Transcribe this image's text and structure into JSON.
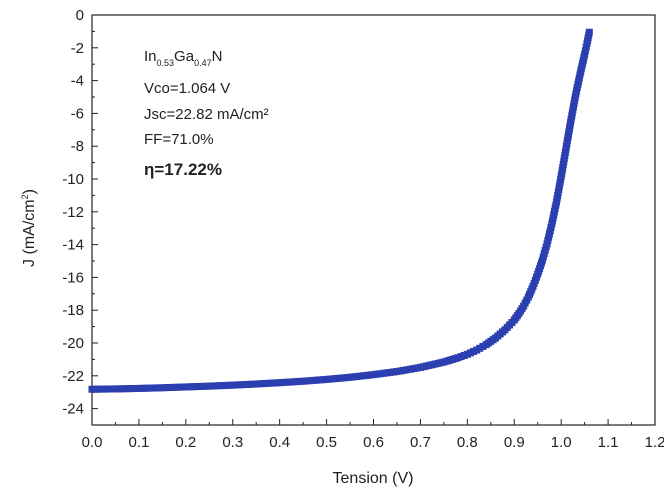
{
  "chart_data": {
    "type": "scatter",
    "title": "",
    "xlabel": "Tension (V)",
    "ylabel_main": "J (mA/cm",
    "ylabel_sup": "2",
    "ylabel_close": ")",
    "xlim": [
      0.0,
      1.2
    ],
    "ylim": [
      -25,
      0
    ],
    "x_ticks": [
      "0.0",
      "0.1",
      "0.2",
      "0.3",
      "0.4",
      "0.5",
      "0.6",
      "0.7",
      "0.8",
      "0.9",
      "1.0",
      "1.1",
      "1.2"
    ],
    "y_ticks": [
      "0",
      "-2",
      "-4",
      "-6",
      "-8",
      "-10",
      "-12",
      "-14",
      "-16",
      "-18",
      "-20",
      "-22",
      "-24"
    ],
    "grid": false,
    "legend": "none",
    "marker": "square",
    "marker_color": "#2b3fb0",
    "series": [
      {
        "x": [
          0.0,
          0.05,
          0.1,
          0.15,
          0.2,
          0.25,
          0.3,
          0.35,
          0.4,
          0.45,
          0.5,
          0.55,
          0.6,
          0.65,
          0.7,
          0.75,
          0.78,
          0.8,
          0.82,
          0.84,
          0.86,
          0.88,
          0.9,
          0.91,
          0.92,
          0.93,
          0.94,
          0.95,
          0.96,
          0.97,
          0.98,
          0.99,
          1.0,
          1.01,
          1.02,
          1.03,
          1.04,
          1.05,
          1.055,
          1.06
        ],
        "y": [
          -22.82,
          -22.8,
          -22.77,
          -22.73,
          -22.68,
          -22.63,
          -22.57,
          -22.5,
          -22.42,
          -22.33,
          -22.22,
          -22.09,
          -21.93,
          -21.74,
          -21.49,
          -21.16,
          -20.9,
          -20.69,
          -20.43,
          -20.1,
          -19.7,
          -19.2,
          -18.6,
          -18.2,
          -17.75,
          -17.2,
          -16.55,
          -15.8,
          -14.95,
          -13.95,
          -12.75,
          -11.4,
          -9.85,
          -8.2,
          -6.55,
          -5.0,
          -3.65,
          -2.4,
          -1.75,
          -1.05
        ]
      }
    ]
  },
  "annotation": {
    "material_in": "In",
    "material_in_sub": "0.53",
    "material_ga": "Ga",
    "material_ga_sub": "0.47",
    "material_n": "N",
    "vco": "Vco=1.064 V",
    "jsc": "Jsc=22.82 mA/cm²",
    "ff": "FF=71.0%",
    "eta": "η=17.22%"
  }
}
